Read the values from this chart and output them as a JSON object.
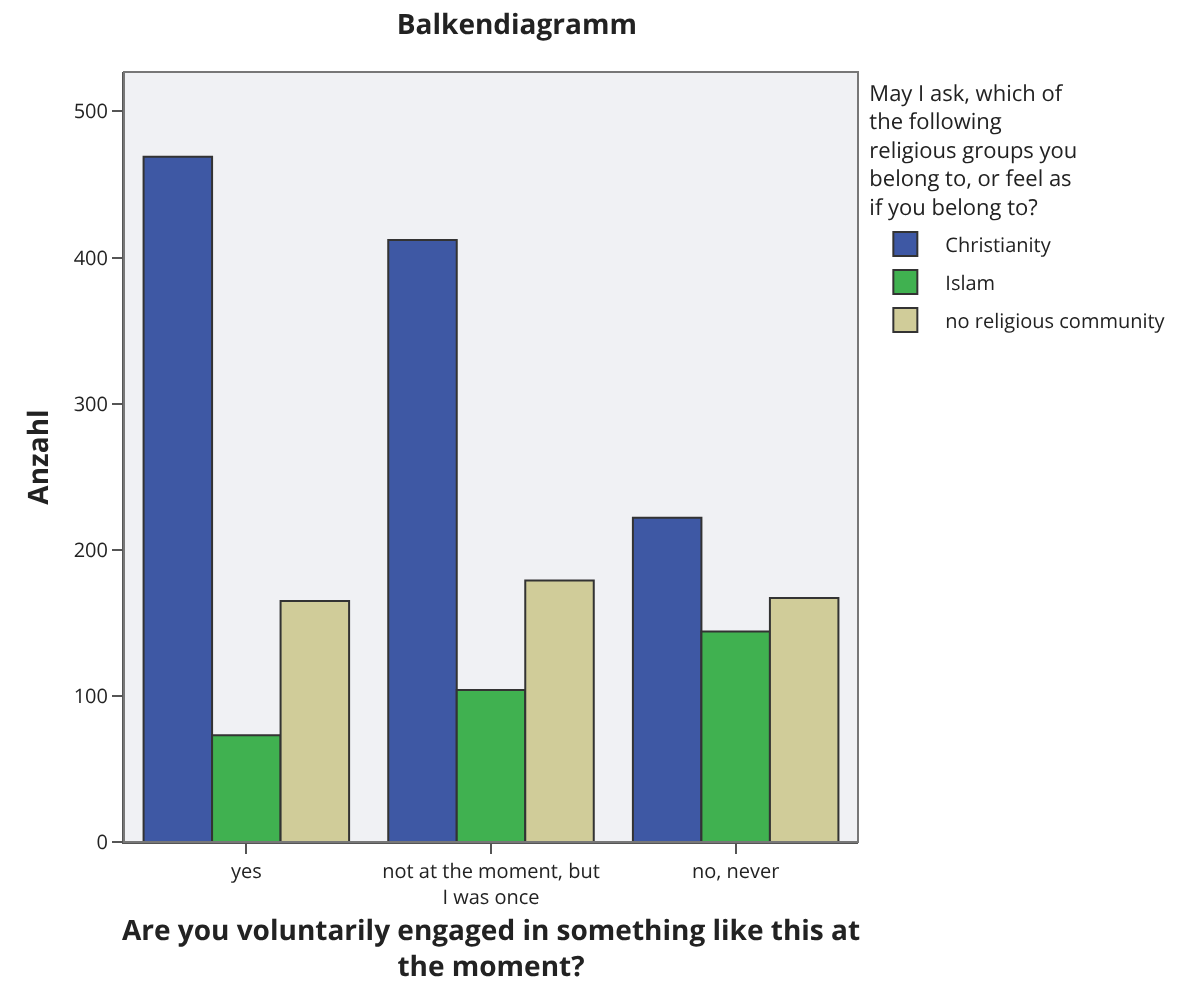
{
  "chart_data": {
    "type": "bar",
    "title": "Balkendiagramm",
    "xlabel": "Are you voluntarily engaged in something like this at the moment?",
    "ylabel": "Anzahl",
    "legend_title": "May I ask, which of the following religious groups you belong to, or feel as if you belong to?",
    "categories": [
      "yes",
      "not at the moment, but I was once",
      "no, never"
    ],
    "series": [
      {
        "name": "Christianity",
        "color": "#3e58a4",
        "values": [
          469,
          412,
          222
        ]
      },
      {
        "name": "Islam",
        "color": "#40b150",
        "values": [
          73,
          104,
          144
        ]
      },
      {
        "name": "no religious community",
        "color": "#d0cc99",
        "values": [
          165,
          179,
          167
        ]
      }
    ],
    "ylim": [
      0,
      527
    ],
    "yticks": [
      0,
      100,
      200,
      300,
      400,
      500
    ],
    "grid": false,
    "legend": "right"
  }
}
